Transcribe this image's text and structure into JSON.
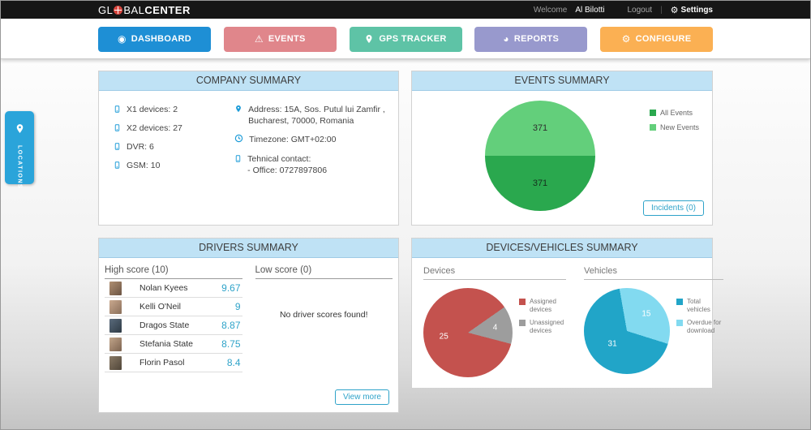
{
  "topbar": {
    "logo_gl": "GL",
    "logo_bal": "BAL",
    "logo_center": "CENTER",
    "welcome_label": "Welcome",
    "user_name": "Al Bilotti",
    "logout_label": "Logout",
    "settings_label": "Settings"
  },
  "nav": {
    "dashboard": "DASHBOARD",
    "events": "EVENTS",
    "gps_tracker": "GPS TRACKER",
    "reports": "REPORTS",
    "configure": "CONFIGURE"
  },
  "locations_tab": {
    "label": "LOCATIONS"
  },
  "company_summary": {
    "title": "COMPANY SUMMARY",
    "device_counts": [
      "X1 devices: 2",
      "X2 devices: 27",
      "DVR: 6",
      "GSM: 10"
    ],
    "address_line1": "Address: 15A, Sos. Putul lui Zamfir ,",
    "address_line2": "Bucharest, 70000, Romania",
    "timezone": "Timezone: GMT+02:00",
    "contact_line1": "Tehnical contact:",
    "contact_line2": "- Office: 0727897806"
  },
  "events_summary": {
    "title": "EVENTS SUMMARY",
    "incidents_button": "Incidents (0)"
  },
  "drivers_summary": {
    "title": "DRIVERS SUMMARY",
    "high_header": "High score (10)",
    "low_header": "Low score (0)",
    "rows": [
      {
        "name": "Nolan Kyees",
        "score": "9.67"
      },
      {
        "name": "Kelli O'Neil",
        "score": "9"
      },
      {
        "name": "Dragos State",
        "score": "8.87"
      },
      {
        "name": "Stefania State",
        "score": "8.75"
      },
      {
        "name": "Florin Pasol",
        "score": "8.4"
      }
    ],
    "low_empty_text": "No driver scores found!",
    "view_more_button": "View more"
  },
  "devices_vehicles_summary": {
    "title": "DEVICES/VEHICLES SUMMARY",
    "devices_header": "Devices",
    "vehicles_header": "Vehicles"
  },
  "colors": {
    "accent_blue": "#1e9cd8",
    "button_dashboard": "#1e8fd5",
    "button_events": "#e0868b",
    "button_gps": "#5ec3a6",
    "button_reports": "#9899cd",
    "button_configure": "#fbb053",
    "score_teal": "#2fa3c9",
    "panel_header_bg": "#bfe2f5",
    "locations_tab_bg": "#2aa4da"
  },
  "chart_data": [
    {
      "type": "pie",
      "name": "events",
      "title": "EVENTS SUMMARY",
      "start_angle": 270,
      "slices": [
        {
          "label": "New Events",
          "value": 371,
          "color": "#63cf7b",
          "label_color": "#2d2d2d",
          "label_r": 0.5
        },
        {
          "label": "All Events",
          "value": 371,
          "color": "#2aa84e",
          "label_color": "#15301d",
          "label_r": 0.5
        }
      ],
      "legend": [
        {
          "label": "All Events",
          "color": "#2aa84e"
        },
        {
          "label": "New Events",
          "color": "#63cf7b"
        }
      ]
    },
    {
      "type": "pie",
      "name": "devices",
      "title": "Devices",
      "start_angle": 55,
      "slices": [
        {
          "label": "Unassigned devices",
          "value": 4,
          "color": "#9d9d9d",
          "label_color": "#ffffff",
          "label_r": 0.62
        },
        {
          "label": "Assigned devices",
          "value": 25,
          "color": "#c4524e",
          "label_color": "#ffffff",
          "label_r": 0.55
        }
      ],
      "legend": [
        {
          "label": "Assigned devices",
          "color": "#c4524e"
        },
        {
          "label": "Unassigned devices",
          "color": "#9d9d9d"
        }
      ]
    },
    {
      "type": "pie",
      "name": "vehicles",
      "title": "Vehicles",
      "start_angle": -10,
      "slices": [
        {
          "label": "Overdue for download",
          "value": 15,
          "color": "#82daf0",
          "label_color": "#ffffff",
          "label_r": 0.6
        },
        {
          "label": "Total vehicles",
          "value": 31,
          "color": "#21a5c8",
          "label_color": "#ffffff",
          "label_r": 0.45
        }
      ],
      "legend": [
        {
          "label": "Total vehicles",
          "color": "#21a5c8"
        },
        {
          "label": "Overdue for download",
          "color": "#82daf0"
        }
      ]
    }
  ]
}
